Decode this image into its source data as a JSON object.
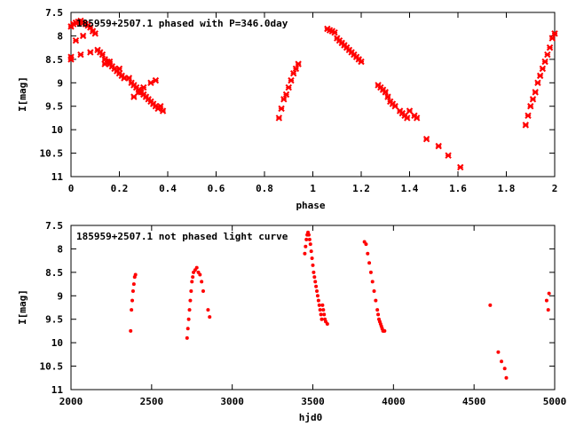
{
  "colors": {
    "points": "#ff0000",
    "axes": "#000000",
    "background": "#ffffff"
  },
  "chart_data": [
    {
      "type": "scatter",
      "title": "185959+2507.1 phased with P=346.0day",
      "xlabel": "phase",
      "ylabel": "I[mag]",
      "xlim": [
        0,
        2
      ],
      "ylim": [
        7.5,
        11
      ],
      "y_inverted": true,
      "grid": false,
      "x_ticks": [
        "0",
        "0.2",
        "0.4",
        "0.6",
        "0.8",
        "1",
        "1.2",
        "1.4",
        "1.6",
        "1.8",
        "2"
      ],
      "y_ticks": [
        "7.5",
        "8",
        "8.5",
        "9",
        "9.5",
        "10",
        "10.5",
        "11"
      ],
      "series": [
        {
          "marker": "x",
          "x": [
            0.0,
            0.01,
            0.02,
            0.03,
            0.04,
            0.05,
            0.06,
            0.07,
            0.08,
            0.09,
            0.1,
            0.0,
            0.0,
            0.02,
            0.04,
            0.05,
            0.08,
            0.11,
            0.12,
            0.13,
            0.14,
            0.15,
            0.16,
            0.17,
            0.18,
            0.19,
            0.2,
            0.21,
            0.22,
            0.14,
            0.16,
            0.2,
            0.24,
            0.25,
            0.26,
            0.27,
            0.28,
            0.29,
            0.3,
            0.31,
            0.32,
            0.33,
            0.34,
            0.35,
            0.36,
            0.26,
            0.28,
            0.3,
            0.33,
            0.35,
            0.37,
            0.38,
            0.86,
            0.87,
            0.88,
            0.89,
            0.9,
            0.91,
            0.92,
            0.93,
            0.94,
            1.06,
            1.07,
            1.08,
            1.09,
            1.1,
            1.11,
            1.12,
            1.13,
            1.14,
            1.15,
            1.16,
            1.17,
            1.18,
            1.19,
            1.2,
            1.27,
            1.28,
            1.29,
            1.3,
            1.31,
            1.32,
            1.33,
            1.34,
            1.36,
            1.37,
            1.38,
            1.39,
            1.4,
            1.42,
            1.43,
            1.47,
            1.52,
            1.56,
            1.61,
            1.88,
            1.89,
            1.9,
            1.91,
            1.92,
            1.93,
            1.94,
            1.95,
            1.96,
            1.97,
            1.98,
            1.99,
            2.0
          ],
          "y": [
            7.8,
            7.75,
            7.72,
            7.7,
            7.68,
            7.72,
            7.75,
            7.78,
            7.82,
            7.9,
            7.95,
            8.45,
            8.5,
            8.1,
            8.4,
            8.0,
            8.35,
            8.3,
            8.35,
            8.4,
            8.5,
            8.55,
            8.6,
            8.65,
            8.7,
            8.75,
            8.8,
            8.85,
            8.9,
            8.6,
            8.55,
            8.7,
            8.9,
            9.0,
            9.05,
            9.1,
            9.15,
            9.2,
            9.25,
            9.3,
            9.35,
            9.4,
            9.45,
            9.5,
            9.55,
            9.3,
            9.2,
            9.1,
            9.0,
            8.95,
            9.5,
            9.6,
            9.75,
            9.55,
            9.35,
            9.25,
            9.1,
            8.95,
            8.8,
            8.7,
            8.6,
            7.85,
            7.88,
            7.9,
            7.93,
            8.05,
            8.1,
            8.15,
            8.2,
            8.25,
            8.3,
            8.35,
            8.4,
            8.45,
            8.5,
            8.55,
            9.05,
            9.1,
            9.15,
            9.2,
            9.3,
            9.4,
            9.45,
            9.5,
            9.6,
            9.65,
            9.7,
            9.75,
            9.6,
            9.7,
            9.75,
            10.2,
            10.35,
            10.55,
            10.8,
            9.9,
            9.7,
            9.5,
            9.35,
            9.2,
            9.0,
            8.85,
            8.7,
            8.55,
            8.4,
            8.25,
            8.05,
            7.95
          ]
        }
      ]
    },
    {
      "type": "scatter",
      "title": "185959+2507.1 not phased light curve",
      "xlabel": "hjd0",
      "ylabel": "I[mag]",
      "xlim": [
        2000,
        5000
      ],
      "ylim": [
        7.5,
        11
      ],
      "y_inverted": true,
      "grid": false,
      "x_ticks": [
        "2000",
        "2500",
        "3000",
        "3500",
        "4000",
        "4500",
        "5000"
      ],
      "y_ticks": [
        "7.5",
        "8",
        "8.5",
        "9",
        "9.5",
        "10",
        "10.5",
        "11"
      ],
      "series": [
        {
          "marker": "dot",
          "x": [
            2370,
            2375,
            2380,
            2385,
            2390,
            2395,
            2400,
            2720,
            2725,
            2730,
            2735,
            2740,
            2745,
            2750,
            2755,
            2760,
            2770,
            2780,
            2790,
            2800,
            2810,
            2820,
            2850,
            2860,
            3450,
            3455,
            3460,
            3465,
            3470,
            3475,
            3480,
            3485,
            3490,
            3495,
            3500,
            3505,
            3510,
            3515,
            3520,
            3525,
            3530,
            3535,
            3540,
            3545,
            3550,
            3555,
            3560,
            3565,
            3570,
            3575,
            3580,
            3590,
            3820,
            3830,
            3840,
            3850,
            3860,
            3870,
            3880,
            3890,
            3900,
            3905,
            3910,
            3915,
            3920,
            3925,
            3930,
            3935,
            3940,
            3945,
            4600,
            4650,
            4670,
            4690,
            4700,
            4950,
            4960,
            4965
          ],
          "y": [
            9.75,
            9.3,
            9.1,
            8.9,
            8.75,
            8.6,
            8.55,
            9.9,
            9.7,
            9.5,
            9.3,
            9.1,
            8.9,
            8.7,
            8.6,
            8.5,
            8.45,
            8.4,
            8.5,
            8.55,
            8.7,
            8.9,
            9.3,
            9.45,
            8.1,
            7.95,
            7.8,
            7.7,
            7.65,
            7.7,
            7.8,
            7.9,
            8.05,
            8.2,
            8.35,
            8.5,
            8.6,
            8.7,
            8.8,
            8.9,
            9.0,
            9.1,
            9.2,
            9.3,
            9.4,
            9.5,
            9.2,
            9.3,
            9.4,
            9.5,
            9.55,
            9.6,
            7.85,
            7.9,
            8.1,
            8.3,
            8.5,
            8.7,
            8.9,
            9.1,
            9.3,
            9.4,
            9.5,
            9.55,
            9.6,
            9.65,
            9.7,
            9.75,
            9.75,
            9.75,
            9.2,
            10.2,
            10.4,
            10.55,
            10.75,
            9.1,
            9.3,
            8.95
          ]
        }
      ]
    }
  ]
}
